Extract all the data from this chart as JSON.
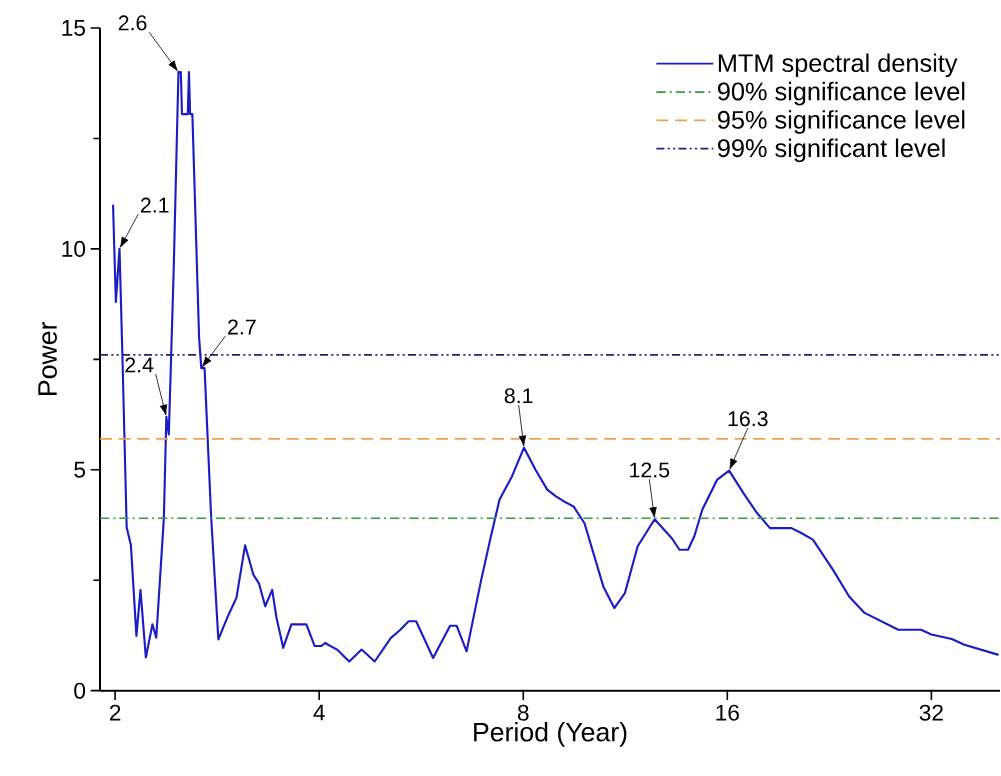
{
  "chart_data": {
    "type": "line",
    "xlabel": "Period (Year)",
    "ylabel": "Power",
    "log": "x",
    "xlim": [
      1.9,
      40.4
    ],
    "xticks": [
      2,
      4,
      8,
      16,
      32
    ],
    "ylim": [
      0,
      15
    ],
    "yticks": [
      0,
      5,
      10,
      15
    ],
    "grid": false,
    "legend": "top right",
    "marker": "none",
    "series": [
      {
        "name": "MTM spectral density",
        "color": "#1c1cc4",
        "line_style": "solid",
        "x": [
          1.986,
          2.005,
          2.03,
          2.05,
          2.08,
          2.11,
          2.15,
          2.18,
          2.22,
          2.27,
          2.3,
          2.36,
          2.38,
          2.4,
          2.44,
          2.48,
          2.5,
          2.51,
          2.56,
          2.57,
          2.58,
          2.6,
          2.66,
          2.68,
          2.71,
          2.77,
          2.84,
          2.94,
          3.02,
          3.11,
          3.2,
          3.26,
          3.33,
          3.41,
          3.46,
          3.54,
          3.64,
          3.83,
          3.94,
          4.03,
          4.08,
          4.25,
          4.43,
          4.62,
          4.83,
          5.1,
          5.27,
          5.42,
          5.56,
          5.89,
          6.24,
          6.38,
          6.6,
          6.92,
          7.15,
          7.38,
          7.7,
          8.02,
          8.34,
          8.68,
          8.94,
          9.2,
          9.49,
          9.85,
          10.5,
          10.9,
          11.3,
          11.8,
          12.5,
          13.25,
          13.6,
          14.0,
          14.3,
          14.7,
          15.45,
          16.1,
          16.9,
          17.7,
          18.5,
          19.9,
          20.5,
          21.4,
          22.9,
          24.2,
          25.5,
          28.6,
          30.9,
          32.0,
          34.3,
          35.8,
          40.2
        ],
        "values": [
          11.0,
          8.8,
          10.0,
          7.6,
          3.7,
          3.3,
          1.24,
          2.28,
          0.75,
          1.5,
          1.2,
          3.9,
          6.2,
          5.8,
          9.5,
          14.0,
          14.0,
          13.05,
          13.05,
          14.0,
          13.05,
          13.05,
          8.0,
          7.3,
          7.3,
          4.0,
          1.16,
          1.72,
          2.1,
          3.29,
          2.62,
          2.43,
          1.91,
          2.28,
          1.65,
          0.97,
          1.5,
          1.5,
          1.01,
          1.01,
          1.08,
          0.93,
          0.66,
          0.93,
          0.66,
          1.19,
          1.38,
          1.57,
          1.57,
          0.74,
          1.47,
          1.47,
          0.89,
          2.44,
          3.42,
          4.32,
          4.85,
          5.5,
          5.0,
          4.55,
          4.4,
          4.28,
          4.17,
          3.79,
          2.36,
          1.87,
          2.21,
          3.27,
          3.88,
          3.45,
          3.19,
          3.19,
          3.49,
          4.1,
          4.77,
          4.98,
          4.47,
          4.02,
          3.68,
          3.68,
          3.58,
          3.42,
          2.74,
          2.13,
          1.76,
          1.38,
          1.38,
          1.27,
          1.17,
          1.04,
          0.81
        ]
      }
    ],
    "ref_lines": [
      {
        "axis": "y",
        "value": 3.9,
        "label": "90% significance level",
        "color": "#3c9a3c",
        "line_style": "dashdot"
      },
      {
        "axis": "y",
        "value": 5.7,
        "label": "95% significance level",
        "color": "#f0a050",
        "line_style": "dashed"
      },
      {
        "axis": "y",
        "value": 7.6,
        "label": "99% significant level",
        "color": "#22227a",
        "line_style": "dashdotdot"
      }
    ],
    "annotations": [
      {
        "text": "2.1",
        "x": 2.03,
        "y": 10.0
      },
      {
        "text": "2.4",
        "x": 2.38,
        "y": 6.2
      },
      {
        "text": "2.6",
        "x": 2.48,
        "y": 14.0
      },
      {
        "text": "2.7",
        "x": 2.68,
        "y": 7.3
      },
      {
        "text": "8.1",
        "x": 8.02,
        "y": 5.5
      },
      {
        "text": "12.5",
        "x": 12.5,
        "y": 3.88
      },
      {
        "text": "16.3",
        "x": 16.1,
        "y": 4.98
      }
    ]
  }
}
